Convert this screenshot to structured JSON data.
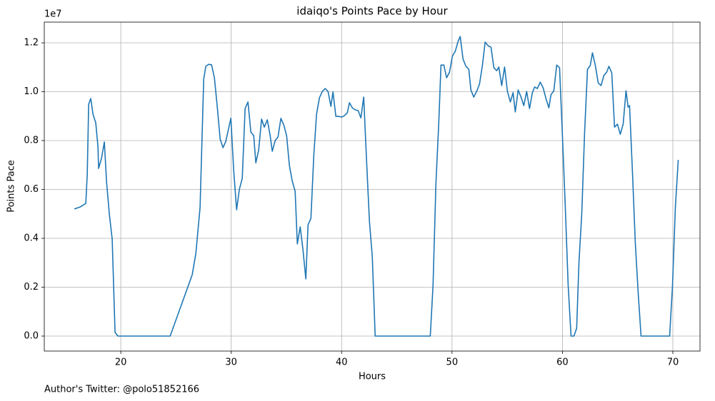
{
  "chart_data": {
    "type": "line",
    "title": "idaiqo's Points Pace by Hour",
    "xlabel": "Hours",
    "ylabel": "Points Pace",
    "y_offset_text": "1e7",
    "footnote": "Author's Twitter: @polo51852166",
    "color": "#1f77b4",
    "grid": true,
    "xlim": [
      13.07,
      72.46
    ],
    "ylim": [
      -613000,
      12847000
    ],
    "xticks": [
      20,
      30,
      40,
      50,
      60,
      70
    ],
    "yticks": [
      {
        "value": 0,
        "label": "0.0"
      },
      {
        "value": 2000000,
        "label": "0.2"
      },
      {
        "value": 4000000,
        "label": "0.4"
      },
      {
        "value": 6000000,
        "label": "0.6"
      },
      {
        "value": 8000000,
        "label": "0.8"
      },
      {
        "value": 10000000,
        "label": "1.0"
      },
      {
        "value": 12000000,
        "label": "1.2"
      }
    ],
    "x": [
      15.79,
      16.31,
      16.83,
      16.96,
      17.09,
      17.28,
      17.48,
      17.73,
      17.93,
      17.99,
      18.25,
      18.51,
      18.71,
      18.96,
      19.22,
      19.48,
      19.74,
      24.47,
      26.47,
      26.8,
      27.18,
      27.51,
      27.7,
      27.96,
      28.22,
      28.48,
      28.74,
      29.0,
      29.26,
      29.51,
      29.97,
      30.23,
      30.49,
      30.74,
      31.0,
      31.26,
      31.52,
      31.78,
      32.04,
      32.23,
      32.49,
      32.75,
      33.0,
      33.27,
      33.53,
      33.72,
      33.98,
      34.24,
      34.5,
      34.76,
      35.02,
      35.27,
      35.53,
      35.79,
      35.99,
      36.25,
      36.5,
      36.76,
      36.96,
      37.22,
      37.48,
      37.73,
      37.99,
      38.25,
      38.51,
      38.77,
      39.03,
      39.22,
      39.48,
      39.74,
      40.0,
      40.26,
      40.52,
      40.71,
      40.97,
      41.23,
      41.49,
      41.75,
      42.0,
      42.26,
      42.52,
      42.78,
      43.04,
      48.03,
      48.28,
      48.54,
      48.8,
      49.0,
      49.26,
      49.51,
      49.77,
      50.03,
      50.29,
      50.55,
      50.74,
      51.0,
      51.26,
      51.52,
      51.71,
      51.97,
      52.23,
      52.49,
      52.75,
      53.0,
      53.27,
      53.53,
      53.79,
      54.05,
      54.24,
      54.5,
      54.76,
      55.02,
      55.28,
      55.53,
      55.73,
      55.99,
      56.25,
      56.5,
      56.76,
      57.02,
      57.28,
      57.48,
      57.73,
      57.99,
      58.25,
      58.51,
      58.77,
      58.96,
      59.22,
      59.48,
      59.74,
      60.0,
      60.26,
      60.52,
      60.78,
      61.04,
      61.29,
      61.49,
      61.75,
      62.01,
      62.27,
      62.52,
      62.72,
      62.98,
      63.24,
      63.5,
      63.75,
      64.01,
      64.21,
      64.47,
      64.72,
      64.98,
      65.24,
      65.5,
      65.76,
      65.95,
      66.08,
      66.34,
      66.6,
      66.86,
      67.12,
      69.71,
      69.97,
      70.23,
      70.49
    ],
    "values": [
      5200000,
      5280000,
      5430000,
      6600000,
      9490000,
      9720000,
      9080000,
      8730000,
      7770000,
      6860000,
      7270000,
      7940000,
      6310000,
      5000000,
      3970000,
      150000,
      0,
      0,
      2510000,
      3390000,
      5260000,
      10510000,
      11040000,
      11120000,
      11100000,
      10570000,
      9370000,
      8060000,
      7710000,
      7970000,
      8910000,
      6740000,
      5170000,
      6010000,
      6450000,
      9310000,
      9580000,
      8350000,
      8200000,
      7090000,
      7620000,
      8880000,
      8550000,
      8850000,
      8200000,
      7560000,
      8000000,
      8150000,
      8910000,
      8640000,
      8200000,
      6980000,
      6340000,
      5930000,
      3770000,
      4470000,
      3530000,
      2340000,
      4550000,
      4820000,
      7390000,
      9080000,
      9750000,
      10010000,
      10130000,
      10010000,
      9400000,
      9990000,
      8990000,
      8990000,
      8960000,
      9020000,
      9140000,
      9550000,
      9340000,
      9260000,
      9230000,
      8930000,
      9780000,
      7180000,
      4700000,
      3240000,
      0,
      0,
      2070000,
      6220000,
      8730000,
      11090000,
      11090000,
      10570000,
      10800000,
      11450000,
      11650000,
      12060000,
      12260000,
      11330000,
      11040000,
      10920000,
      10070000,
      9780000,
      10010000,
      10310000,
      11070000,
      12030000,
      11880000,
      11820000,
      10980000,
      10860000,
      11010000,
      10250000,
      11010000,
      10010000,
      9580000,
      9960000,
      9170000,
      10070000,
      9780000,
      9430000,
      10010000,
      9310000,
      9960000,
      10190000,
      10130000,
      10390000,
      10160000,
      9720000,
      9340000,
      9870000,
      10040000,
      11090000,
      10980000,
      8200000,
      5280000,
      2070000,
      0,
      0,
      320000,
      2950000,
      4990000,
      8350000,
      10920000,
      11070000,
      11590000,
      11070000,
      10360000,
      10250000,
      10660000,
      10800000,
      11040000,
      10770000,
      8550000,
      8670000,
      8260000,
      8670000,
      10040000,
      9370000,
      9430000,
      6740000,
      3820000,
      1780000,
      0,
      0,
      2070000,
      5280000,
      7210000
    ]
  }
}
